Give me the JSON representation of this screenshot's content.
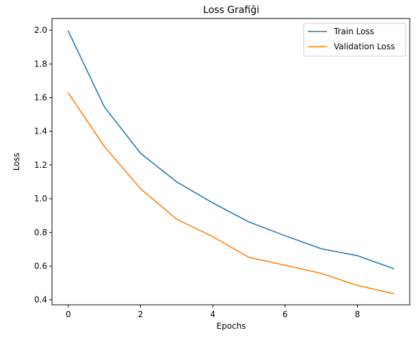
{
  "chart_data": {
    "type": "line",
    "title": "Loss Grafiği",
    "xlabel": "Epochs",
    "ylabel": "Loss",
    "x": [
      0,
      1,
      2,
      3,
      4,
      5,
      6,
      7,
      8,
      9
    ],
    "xlim": [
      -0.45,
      9.45
    ],
    "ylim": [
      0.37,
      2.07
    ],
    "xticks": [
      0,
      2,
      4,
      6,
      8
    ],
    "yticks": [
      0.4,
      0.6,
      0.8,
      1.0,
      1.2,
      1.4,
      1.6,
      1.8,
      2.0
    ],
    "xtick_labels": [
      "0",
      "2",
      "4",
      "6",
      "8"
    ],
    "ytick_labels": [
      "0.4",
      "0.6",
      "0.8",
      "1.0",
      "1.2",
      "1.4",
      "1.6",
      "1.8",
      "2.0"
    ],
    "grid": false,
    "legend_position": "top-right",
    "series": [
      {
        "name": "Train Loss",
        "color": "#1f77b4",
        "values": [
          1.995,
          1.545,
          1.27,
          1.1,
          0.975,
          0.862,
          0.78,
          0.703,
          0.662,
          0.585
        ]
      },
      {
        "name": "Validation Loss",
        "color": "#ff7f0e",
        "values": [
          1.628,
          1.31,
          1.06,
          0.878,
          0.775,
          0.652,
          0.605,
          0.557,
          0.485,
          0.437
        ]
      }
    ]
  }
}
